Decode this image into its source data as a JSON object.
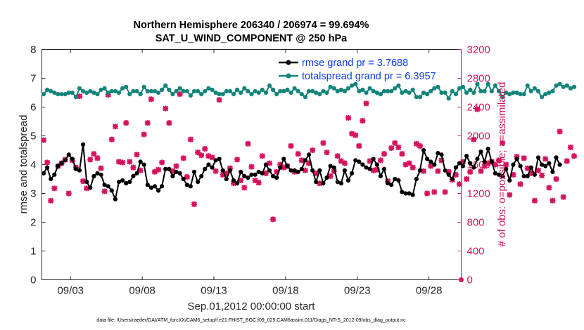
{
  "chart_data": {
    "type": "line",
    "title": "Northern Hemisphere 206340 / 206974 = 99.694%",
    "subtitle": "SAT_U_WIND_COMPONENT @ 250 hPa",
    "xlabel": "Sep.01,2012 00:00:00 start",
    "ylabel_left": "rmse and totalspread",
    "ylabel_right": "# of obs: o=possible; ×=assimilated",
    "footnote": "data file: /Users/raeder/DAI/ATM_forcXX/CAM6_setup/f.e21.FHIST_BGC.f09_025.CAM6assim.011/Diags_NTrS_2012-09/obs_diag_output.nc",
    "xlim": [
      1.0,
      30.25
    ],
    "ylim_left": [
      0,
      8
    ],
    "ylim_right": [
      0,
      3200
    ],
    "x_ticks": [
      3,
      8,
      13,
      18,
      23,
      28
    ],
    "x_tick_labels": [
      "09/03",
      "09/08",
      "09/13",
      "09/18",
      "09/23",
      "09/28"
    ],
    "y_left_ticks": [
      "0",
      "1",
      "2",
      "3",
      "4",
      "5",
      "6",
      "7",
      "8"
    ],
    "y_right_ticks": [
      "0",
      "400",
      "800",
      "1200",
      "1600",
      "2000",
      "2400",
      "2800",
      "3200"
    ],
    "x_step_days": 0.25,
    "x_start_day": 1.125,
    "series": [
      {
        "name": "rmse",
        "legend": "rmse grand pr = 3.7688",
        "color": "#000000",
        "values": [
          3.7,
          3.9,
          3.5,
          3.65,
          3.95,
          4.05,
          4.15,
          4.35,
          4.2,
          3.85,
          3.8,
          4.7,
          3.4,
          3.2,
          3.6,
          3.7,
          3.65,
          3.3,
          3.25,
          3.1,
          2.8,
          3.4,
          3.45,
          3.35,
          3.4,
          3.6,
          3.7,
          4.1,
          4.0,
          3.3,
          3.2,
          3.25,
          3.1,
          3.25,
          3.85,
          3.85,
          3.6,
          3.75,
          3.7,
          3.5,
          3.3,
          3.25,
          3.75,
          3.4,
          3.6,
          3.85,
          4.0,
          3.9,
          4.15,
          4.2,
          3.8,
          3.5,
          3.8,
          3.45,
          3.35,
          3.75,
          3.6,
          3.55,
          3.65,
          3.65,
          3.75,
          3.7,
          4.0,
          3.8,
          3.6,
          3.55,
          3.9,
          4.2,
          3.95,
          3.8,
          3.8,
          3.75,
          3.85,
          4.15,
          4.35,
          3.8,
          3.4,
          3.8,
          3.35,
          3.55,
          3.95,
          3.9,
          3.4,
          3.35,
          3.8,
          3.45,
          3.7,
          4.15,
          4.1,
          4.0,
          3.9,
          3.85,
          4.2,
          4.0,
          3.6,
          3.85,
          3.35,
          3.3,
          3.5,
          3.45,
          3.05,
          3.0,
          3.0,
          2.95,
          3.5,
          3.8,
          4.5,
          4.2,
          4.1,
          4.0,
          4.4,
          4.35,
          3.8,
          3.65,
          3.5,
          3.9,
          4.05,
          3.95,
          4.3,
          4.05,
          3.9,
          4.2,
          4.45,
          4.1,
          4.55,
          4.1,
          3.7,
          3.65,
          3.6,
          3.85,
          3.45,
          4.0,
          4.2,
          3.95,
          3.6,
          3.6,
          3.9,
          3.65,
          4.25,
          4.0,
          3.95,
          4.05,
          3.75,
          4.25,
          4.0
        ]
      },
      {
        "name": "totalspread",
        "legend": "totalspread grand pr = 6.3957",
        "color": "#128479",
        "values": [
          6.45,
          6.6,
          6.55,
          6.5,
          6.45,
          6.45,
          6.45,
          6.5,
          6.5,
          6.35,
          6.65,
          6.55,
          6.5,
          6.55,
          6.5,
          6.45,
          6.6,
          6.65,
          6.5,
          6.55,
          6.55,
          6.5,
          6.65,
          6.7,
          6.45,
          6.55,
          6.55,
          6.45,
          6.7,
          6.55,
          6.55,
          6.55,
          6.5,
          6.6,
          6.75,
          6.6,
          6.45,
          6.55,
          6.65,
          6.55,
          6.55,
          6.4,
          6.55,
          6.55,
          6.45,
          6.55,
          6.65,
          6.6,
          6.5,
          6.45,
          6.45,
          6.55,
          6.55,
          6.45,
          6.6,
          6.5,
          6.65,
          6.55,
          6.45,
          6.55,
          6.5,
          6.6,
          6.5,
          6.75,
          6.6,
          6.45,
          6.55,
          6.55,
          6.6,
          6.5,
          6.65,
          6.55,
          6.45,
          6.35,
          6.55,
          6.55,
          6.5,
          6.45,
          6.55,
          6.5,
          6.7,
          6.65,
          6.55,
          6.6,
          6.55,
          6.65,
          6.75,
          6.8,
          6.55,
          6.6,
          6.5,
          6.65,
          6.55,
          6.5,
          6.45,
          6.55,
          6.55,
          6.55,
          6.65,
          6.75,
          6.5,
          6.55,
          6.5,
          6.6,
          6.35,
          6.35,
          6.5,
          6.45,
          6.55,
          6.65,
          6.7,
          6.5,
          6.5,
          6.3,
          6.55,
          6.45,
          6.65,
          6.7,
          6.5,
          6.6,
          6.5,
          6.8,
          6.55,
          6.55,
          6.8,
          6.55,
          6.75,
          6.55,
          6.35,
          6.5,
          6.45,
          6.5,
          6.5,
          6.45,
          6.45,
          6.75,
          6.55,
          6.65,
          6.55,
          6.35,
          6.45,
          6.5,
          6.55,
          6.75,
          6.8,
          6.7,
          6.75,
          6.65,
          6.7
        ]
      }
    ],
    "obs_possible_color": "#d6125f",
    "obs_assimilated": [
      1940,
      1630,
      1100,
      1270,
      1580,
      1620,
      1670,
      1200,
      1660,
      1560,
      2550,
      1370,
      1270,
      1670,
      1750,
      1690,
      1550,
      1230,
      2570,
      1950,
      2130,
      1640,
      1630,
      2180,
      1640,
      1560,
      1740,
      1520,
      2020,
      2180,
      2510,
      1500,
      1530,
      1630,
      2380,
      2180,
      1510,
      1580,
      2580,
      1690,
      1430,
      1950,
      1050,
      1770,
      1730,
      1820,
      1720,
      1700,
      1510,
      2500,
      1460,
      1480,
      1550,
      1340,
      1670,
      1380,
      1280,
      1890,
      1570,
      1380,
      1350,
      1720,
      1480,
      1620,
      840,
      1500,
      1600,
      1560,
      1580,
      1860,
      1500,
      1750,
      1660,
      1520,
      1620,
      1800,
      1480,
      1340,
      1900,
      1770,
      1440,
      1510,
      1720,
      1650,
      1620,
      2250,
      2030,
      2010,
      1860,
      2210,
      2450,
      1650,
      1520,
      1530,
      1660,
      1750,
      1370,
      1830,
      1900,
      1840,
      1750,
      1600,
      1620,
      1560,
      1890,
      1860,
      1510,
      1200,
      1580,
      1220,
      1510,
      1660,
      1220,
      1500,
      1390,
      1460,
      1330,
      1640,
      1400,
      1500,
      1950,
      2370,
      1510,
      1580,
      1620,
      1640,
      1600,
      1660,
      1900,
      1600,
      1180,
      1460,
      1710,
      1330,
      1690,
      1550,
      1480,
      1100,
      1520,
      1450,
      1680,
      1280,
      1100,
      1400,
      2060,
      1150,
      1650,
      1840,
      1720
    ]
  }
}
